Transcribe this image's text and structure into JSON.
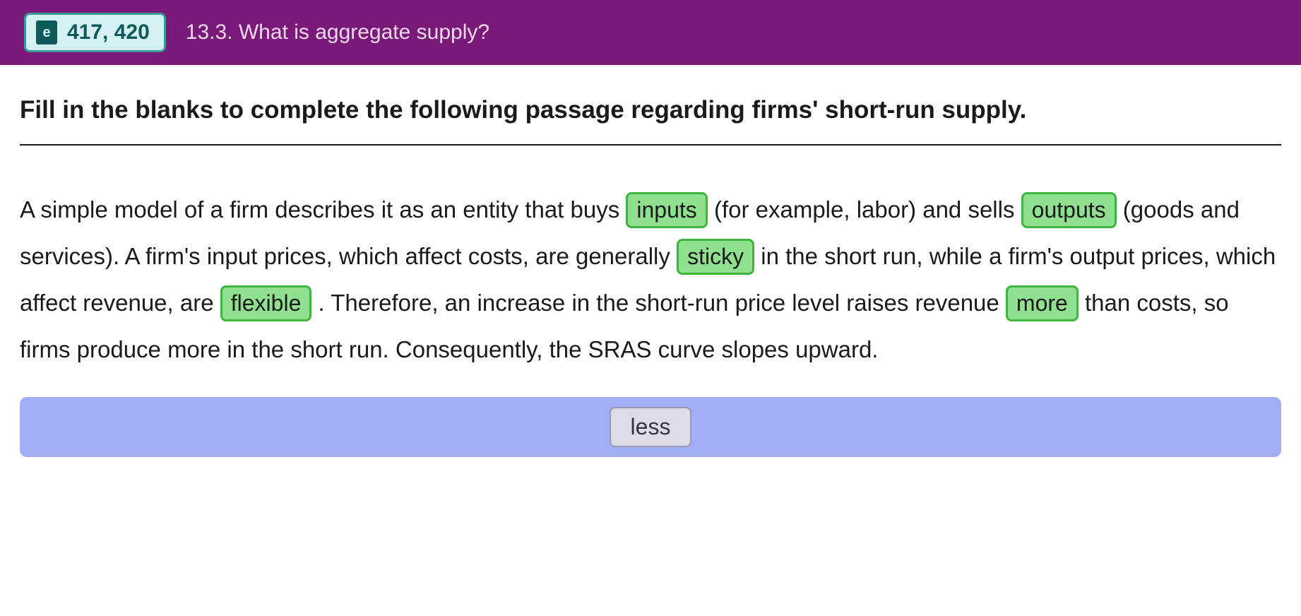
{
  "header": {
    "page_ref": "417, 420",
    "section_title": "13.3. What is aggregate supply?"
  },
  "instruction": "Fill in the blanks to complete the following passage regarding firms' short-run supply.",
  "passage": {
    "seg1": "A simple model of a firm describes it as an entity that buys ",
    "blank1": "inputs",
    "seg2": " (for example, labor) and sells ",
    "blank2": "outputs",
    "seg3": " (goods and services). A firm's input prices, which affect costs, are generally ",
    "blank3": "sticky",
    "seg4": " in the short run, while a firm's output prices, which affect revenue, are ",
    "blank4": "flexible",
    "seg5": ". Therefore, an increase in the short-run price level raises revenue ",
    "blank5": "more",
    "seg6": " than costs, so firms produce more in the short run. Consequently, the SRAS curve slopes upward."
  },
  "options": {
    "remaining": "less"
  },
  "colors": {
    "header_bg": "#7a1a78",
    "badge_bg": "#d5f0f0",
    "badge_border": "#3a9b9b",
    "badge_text": "#0e5a5a",
    "blank_bg": "#8fe08f",
    "blank_border": "#3fb53f",
    "tray_bg": "#a3aef8",
    "chip_bg": "#dcdce6",
    "chip_border": "#9a9ab0"
  }
}
